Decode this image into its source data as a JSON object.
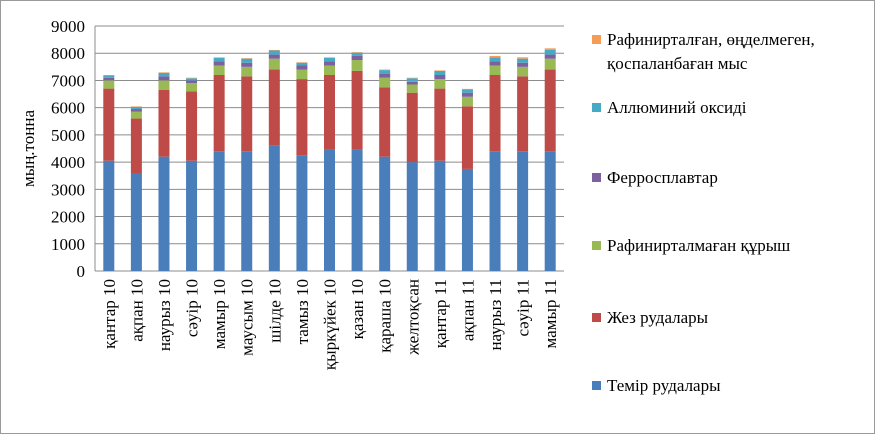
{
  "chart_data": {
    "type": "bar",
    "stacked": true,
    "title": "",
    "xlabel": "",
    "ylabel": "мың.тонна",
    "ylim": [
      0,
      9000
    ],
    "yticks": [
      0,
      1000,
      2000,
      3000,
      4000,
      5000,
      6000,
      7000,
      8000,
      9000
    ],
    "grid": "horizontal",
    "legend_position": "right",
    "categories": [
      "қантар 10",
      "ақпан 10",
      "наурыз 10",
      "сәуір 10",
      "мамыр 10",
      "маусым 10",
      "шілде 10",
      "тамыз 10",
      "қыркүйек 10",
      "қазан 10",
      "қараша 10",
      "желтоқсан",
      "қантар 11",
      "ақпан 11",
      "наурыз 11",
      "сәуір 11",
      "мамыр 11"
    ],
    "series": [
      {
        "name": "Темір рудалары",
        "color": "#4a7ebb",
        "values": [
          4050,
          3600,
          4200,
          4050,
          4400,
          4400,
          4600,
          4250,
          4450,
          4450,
          4200,
          4000,
          4050,
          3750,
          4400,
          4400,
          4400
        ]
      },
      {
        "name": "Жез рудалары",
        "color": "#be4b48",
        "values": [
          2650,
          2000,
          2450,
          2550,
          2800,
          2750,
          2800,
          2800,
          2750,
          2900,
          2550,
          2550,
          2650,
          2300,
          2800,
          2750,
          3000
        ]
      },
      {
        "name": "Рафинирталмаған құрыш",
        "color": "#98b954",
        "values": [
          300,
          250,
          350,
          300,
          350,
          350,
          400,
          350,
          350,
          400,
          350,
          300,
          350,
          350,
          350,
          350,
          400
        ]
      },
      {
        "name": "Ферросплавтар",
        "color": "#7d60a0",
        "values": [
          100,
          100,
          150,
          100,
          150,
          150,
          150,
          150,
          150,
          150,
          150,
          100,
          150,
          150,
          150,
          150,
          150
        ]
      },
      {
        "name": "Аллюминий оксиді",
        "color": "#46aac5",
        "values": [
          80,
          80,
          130,
          80,
          130,
          150,
          150,
          100,
          130,
          120,
          130,
          130,
          150,
          120,
          150,
          150,
          180
        ]
      },
      {
        "name": "Рафинирталған, өңделмеген, қоспаланбаған мыс",
        "color": "#f59d56",
        "values": [
          20,
          20,
          20,
          20,
          20,
          20,
          20,
          20,
          20,
          20,
          20,
          20,
          20,
          20,
          50,
          50,
          50
        ]
      }
    ]
  }
}
